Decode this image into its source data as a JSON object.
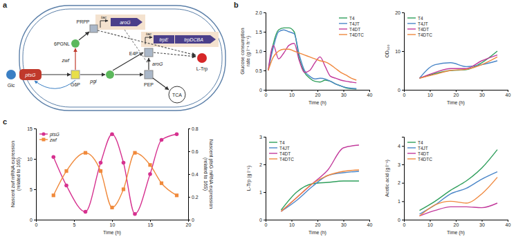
{
  "panel_labels": [
    "a",
    "b",
    "c"
  ],
  "diagram": {
    "labels": [
      "Glc",
      "ptsG",
      "G6P",
      "zwf",
      "6PGNL",
      "PRPP",
      "pgi",
      "PEP",
      "E4P",
      "aroG",
      "TCA",
      "L-Trp",
      "tac",
      "aroG",
      "tac",
      "trpE",
      "trpDCBA"
    ]
  },
  "chart_data": [
    {
      "type": "line",
      "y_label": [
        "Glucose consumption",
        "rate (g l⁻¹ h⁻¹)"
      ],
      "x_label": "Time (h)",
      "x": [
        1,
        3,
        5,
        7,
        9,
        11,
        13,
        15,
        17,
        19,
        21,
        23,
        25,
        27,
        29,
        31,
        33,
        35
      ],
      "xlim": [
        0,
        40
      ],
      "xticks": [
        0,
        10,
        20,
        30,
        40
      ],
      "ylim": [
        0,
        2
      ],
      "yticks": [
        0,
        0.5,
        {
          "value": 1,
          "label": "1.0"
        },
        1.5,
        {
          "value": 2,
          "label": "2.0"
        }
      ],
      "legend": "top-right",
      "series": [
        {
          "name": "T4",
          "color": "#2e9e5b",
          "values": [
            0.5,
            1.2,
            1.55,
            1.6,
            1.6,
            1.5,
            0.8,
            0.45,
            0.3,
            0.22,
            0.2,
            0.25,
            0.22,
            0.15,
            0.1,
            0.05,
            0.03,
            0.02
          ]
        },
        {
          "name": "T4JT",
          "color": "#4a86c8",
          "values": [
            0.5,
            1.1,
            1.5,
            1.55,
            1.5,
            1.45,
            0.9,
            0.5,
            0.35,
            0.28,
            0.3,
            0.28,
            0.22,
            0.15,
            0.1,
            0.06,
            0.04,
            0.03
          ]
        },
        {
          "name": "T4DT",
          "color": "#c2399b",
          "values": [
            0.5,
            1.15,
            0.8,
            0.95,
            1.15,
            1.2,
            0.75,
            0.45,
            0.5,
            0.7,
            0.85,
            0.6,
            0.35,
            0.3,
            0.25,
            0.22,
            0.2,
            0.18
          ]
        },
        {
          "name": "T4DTC",
          "color": "#f0883e",
          "values": [
            0.5,
            0.85,
            1.0,
            1.05,
            1.05,
            1.0,
            0.95,
            0.9,
            0.85,
            0.8,
            0.75,
            0.72,
            0.65,
            0.55,
            0.45,
            0.38,
            0.3,
            0.25
          ]
        }
      ]
    },
    {
      "type": "line",
      "y_label": "OD₆₀₀",
      "x_label": "Time (h)",
      "x": [
        6,
        12,
        18,
        24,
        30,
        36
      ],
      "xlim": [
        0,
        40
      ],
      "xticks": [
        0,
        10,
        20,
        30,
        40
      ],
      "ylim": [
        0,
        20
      ],
      "yticks": [
        0,
        10,
        20
      ],
      "legend": "top-left",
      "series": [
        {
          "name": "T4",
          "color": "#2e9e5b",
          "values": [
            3,
            4.2,
            5,
            5.2,
            7,
            10
          ]
        },
        {
          "name": "T4JT",
          "color": "#4a86c8",
          "values": [
            3,
            6.5,
            7,
            6,
            6.5,
            7.5
          ]
        },
        {
          "name": "T4DT",
          "color": "#c2399b",
          "values": [
            3,
            4.5,
            5.5,
            5.5,
            7.5,
            9
          ]
        },
        {
          "name": "T4DTC",
          "color": "#f0883e",
          "values": [
            3,
            4,
            5,
            5.3,
            6.5,
            8.5
          ]
        }
      ]
    },
    {
      "type": "line",
      "y_label": "L-Trp (g l⁻¹)",
      "x_label": "Time (h)",
      "x": [
        6,
        12,
        18,
        24,
        30,
        36
      ],
      "xlim": [
        0,
        40
      ],
      "xticks": [
        0,
        10,
        20,
        30,
        40
      ],
      "ylim": [
        0,
        3
      ],
      "yticks": [
        0,
        1,
        2,
        3
      ],
      "legend": "top-left",
      "series": [
        {
          "name": "T4",
          "color": "#2e9e5b",
          "values": [
            0.35,
            1.0,
            1.3,
            1.35,
            1.4,
            1.4
          ]
        },
        {
          "name": "T4JT",
          "color": "#4a86c8",
          "values": [
            0.3,
            0.7,
            1.2,
            1.6,
            1.7,
            1.75
          ]
        },
        {
          "name": "T4DT",
          "color": "#c2399b",
          "values": [
            0.3,
            0.8,
            1.3,
            1.8,
            2.6,
            2.7
          ]
        },
        {
          "name": "T4DTC",
          "color": "#f0883e",
          "values": [
            0.3,
            0.8,
            1.3,
            1.6,
            1.75,
            1.8
          ]
        }
      ]
    },
    {
      "type": "line",
      "y_label": "Acetic acid (g l⁻¹)",
      "x_label": "Time (h)",
      "x": [
        6,
        12,
        18,
        24,
        30,
        36
      ],
      "xlim": [
        0,
        40
      ],
      "xticks": [
        0,
        10,
        20,
        30,
        40
      ],
      "ylim": [
        0,
        4.5
      ],
      "yticks": [
        0,
        1,
        2,
        3,
        4
      ],
      "legend": "top-left",
      "series": [
        {
          "name": "T4",
          "color": "#2e9e5b",
          "values": [
            0.5,
            1.0,
            1.6,
            2.1,
            2.8,
            3.8
          ]
        },
        {
          "name": "T4JT",
          "color": "#4a86c8",
          "values": [
            0.3,
            0.8,
            1.4,
            1.7,
            2.2,
            2.6
          ]
        },
        {
          "name": "T4DT",
          "color": "#c2399b",
          "values": [
            0.2,
            0.5,
            0.7,
            0.7,
            0.65,
            0.9
          ]
        },
        {
          "name": "T4DTC",
          "color": "#f0883e",
          "values": [
            0.2,
            0.8,
            1.0,
            0.9,
            1.4,
            2.3
          ]
        }
      ]
    },
    {
      "type": "line",
      "y_label": [
        "Nascent zwf mRNA expression",
        "(related to 16S)"
      ],
      "y2_label": [
        "Nascent ptsG mRNA expression",
        "(related to 16S)"
      ],
      "x_label": "Time (h)",
      "x": [
        2.3,
        4,
        6.5,
        8.5,
        10,
        11.5,
        13,
        15,
        16.5,
        18.5
      ],
      "xlim": [
        0,
        20
      ],
      "xticks": [
        0,
        5,
        10,
        15,
        20
      ],
      "ylim": [
        0,
        15
      ],
      "yticks": [
        0,
        5,
        10,
        15
      ],
      "y2lim": [
        0,
        0.8
      ],
      "y2ticks": [
        0,
        0.2,
        0.4,
        0.6,
        0.8
      ],
      "legend": "top-left",
      "series": [
        {
          "name": "ptsG",
          "color": "#d6318f",
          "marker": "circle",
          "axis": "y2",
          "values": [
            0.55,
            0.3,
            0.07,
            0.5,
            0.75,
            0.5,
            0.05,
            0.4,
            0.7,
            0.75
          ]
        },
        {
          "name": "zwf",
          "color": "#f08a3c",
          "marker": "square",
          "values": [
            4,
            8,
            11,
            8,
            2,
            5,
            11,
            9,
            6,
            4
          ]
        }
      ]
    }
  ]
}
